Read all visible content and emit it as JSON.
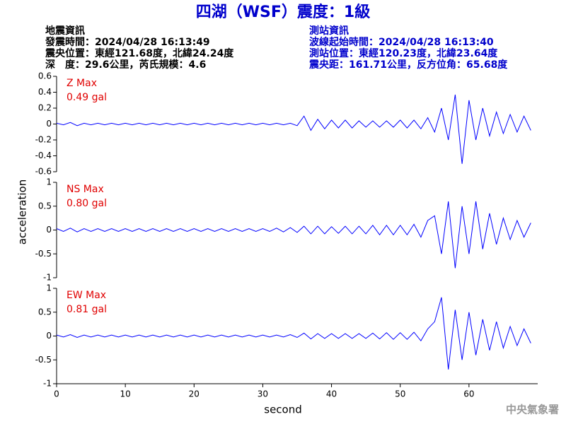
{
  "header": {
    "title": "四湖（WSF）震度：1級",
    "left": [
      "地震資訊",
      "發震時間：2024/04/28 16:13:49",
      "震央位置：東經121.68度，北緯24.24度",
      "深　度：29.6公里，芮氏規模：4.6"
    ],
    "right": [
      "測站資訊",
      "波線起始時間：2024/04/28 16:13:40",
      "測站位置：東經120.23度，北緯23.64度",
      "震央距：161.71公里，反方位角：65.68度"
    ],
    "footer": "中央氣象署"
  },
  "chart_data": [
    {
      "type": "line",
      "annotations": [
        "Z Max",
        "0.49 gal"
      ],
      "color": "#0000ff",
      "x": [
        0,
        1,
        2,
        3,
        4,
        5,
        6,
        7,
        8,
        9,
        10,
        11,
        12,
        13,
        14,
        15,
        16,
        17,
        18,
        19,
        20,
        21,
        22,
        23,
        24,
        25,
        26,
        27,
        28,
        29,
        30,
        31,
        32,
        33,
        34,
        35,
        36,
        37,
        38,
        39,
        40,
        41,
        42,
        43,
        44,
        45,
        46,
        47,
        48,
        49,
        50,
        51,
        52,
        53,
        54,
        55,
        56,
        57,
        58,
        59,
        60,
        61,
        62,
        63,
        64,
        65,
        66,
        67,
        68,
        69
      ],
      "values": [
        0.01,
        -0.01,
        0.02,
        -0.02,
        0.01,
        -0.01,
        0.01,
        -0.01,
        0.01,
        -0.01,
        0.01,
        -0.01,
        0.01,
        -0.01,
        0.01,
        -0.01,
        0.01,
        -0.01,
        0.01,
        -0.01,
        0.01,
        -0.01,
        0.01,
        -0.01,
        0.01,
        -0.01,
        0.01,
        -0.01,
        0.01,
        -0.01,
        0.01,
        -0.01,
        0.01,
        -0.01,
        0.01,
        -0.02,
        0.1,
        -0.08,
        0.06,
        -0.06,
        0.05,
        -0.05,
        0.05,
        -0.05,
        0.04,
        -0.04,
        0.04,
        -0.04,
        0.04,
        -0.04,
        0.05,
        -0.05,
        0.05,
        -0.06,
        0.08,
        -0.1,
        0.2,
        -0.2,
        0.37,
        -0.5,
        0.3,
        -0.2,
        0.2,
        -0.15,
        0.15,
        -0.12,
        0.12,
        -0.1,
        0.1,
        -0.08
      ],
      "xlim": [
        0,
        70
      ],
      "ylim": [
        -0.6,
        0.6
      ],
      "yticks": [
        0.6,
        0.4,
        0.2,
        0,
        -0.2,
        -0.4,
        -0.6
      ]
    },
    {
      "type": "line",
      "annotations": [
        "NS Max",
        "0.80 gal"
      ],
      "color": "#0000ff",
      "ylabel": "acceleration",
      "x": [
        0,
        1,
        2,
        3,
        4,
        5,
        6,
        7,
        8,
        9,
        10,
        11,
        12,
        13,
        14,
        15,
        16,
        17,
        18,
        19,
        20,
        21,
        22,
        23,
        24,
        25,
        26,
        27,
        28,
        29,
        30,
        31,
        32,
        33,
        34,
        35,
        36,
        37,
        38,
        39,
        40,
        41,
        42,
        43,
        44,
        45,
        46,
        47,
        48,
        49,
        50,
        51,
        52,
        53,
        54,
        55,
        56,
        57,
        58,
        59,
        60,
        61,
        62,
        63,
        64,
        65,
        66,
        67,
        68,
        69
      ],
      "values": [
        0.03,
        -0.03,
        0.04,
        -0.04,
        0.03,
        -0.03,
        0.03,
        -0.03,
        0.03,
        -0.03,
        0.03,
        -0.03,
        0.03,
        -0.03,
        0.03,
        -0.03,
        0.03,
        -0.03,
        0.03,
        -0.03,
        0.03,
        -0.03,
        0.03,
        -0.03,
        0.03,
        -0.03,
        0.03,
        -0.03,
        0.03,
        -0.03,
        0.03,
        -0.03,
        0.04,
        -0.04,
        0.05,
        -0.05,
        0.08,
        -0.08,
        0.08,
        -0.08,
        0.07,
        -0.07,
        0.08,
        -0.08,
        0.08,
        -0.08,
        0.1,
        -0.1,
        0.1,
        -0.1,
        0.1,
        -0.1,
        0.12,
        -0.15,
        0.2,
        0.3,
        -0.5,
        0.6,
        -0.8,
        0.5,
        -0.5,
        0.6,
        -0.4,
        0.35,
        -0.3,
        0.25,
        -0.2,
        0.2,
        -0.15,
        0.15
      ],
      "xlim": [
        0,
        70
      ],
      "ylim": [
        -1,
        1
      ],
      "yticks": [
        1,
        0.5,
        0,
        -0.5,
        -1
      ]
    },
    {
      "type": "line",
      "annotations": [
        "EW Max",
        "0.81 gal"
      ],
      "color": "#0000ff",
      "xlabel": "second",
      "x": [
        0,
        1,
        2,
        3,
        4,
        5,
        6,
        7,
        8,
        9,
        10,
        11,
        12,
        13,
        14,
        15,
        16,
        17,
        18,
        19,
        20,
        21,
        22,
        23,
        24,
        25,
        26,
        27,
        28,
        29,
        30,
        31,
        32,
        33,
        34,
        35,
        36,
        37,
        38,
        39,
        40,
        41,
        42,
        43,
        44,
        45,
        46,
        47,
        48,
        49,
        50,
        51,
        52,
        53,
        54,
        55,
        56,
        57,
        58,
        59,
        60,
        61,
        62,
        63,
        64,
        65,
        66,
        67,
        68,
        69
      ],
      "values": [
        0.02,
        -0.02,
        0.03,
        -0.03,
        0.02,
        -0.02,
        0.02,
        -0.02,
        0.02,
        -0.02,
        0.02,
        -0.02,
        0.02,
        -0.02,
        0.02,
        -0.02,
        0.02,
        -0.02,
        0.02,
        -0.02,
        0.02,
        -0.02,
        0.02,
        -0.02,
        0.02,
        -0.02,
        0.02,
        -0.02,
        0.02,
        -0.02,
        0.02,
        -0.02,
        0.02,
        -0.02,
        0.03,
        -0.03,
        0.06,
        -0.06,
        0.05,
        -0.05,
        0.05,
        -0.05,
        0.05,
        -0.05,
        0.05,
        -0.05,
        0.06,
        -0.06,
        0.07,
        -0.07,
        0.07,
        -0.07,
        0.08,
        -0.1,
        0.15,
        0.3,
        0.81,
        -0.7,
        0.55,
        -0.5,
        0.5,
        -0.4,
        0.35,
        -0.3,
        0.3,
        -0.25,
        0.2,
        -0.2,
        0.15,
        -0.15
      ],
      "xlim": [
        0,
        70
      ],
      "ylim": [
        -1,
        1
      ],
      "yticks": [
        1,
        0.5,
        0,
        -0.5,
        -1
      ],
      "xticks": [
        0,
        10,
        20,
        30,
        40,
        50,
        60
      ]
    }
  ]
}
